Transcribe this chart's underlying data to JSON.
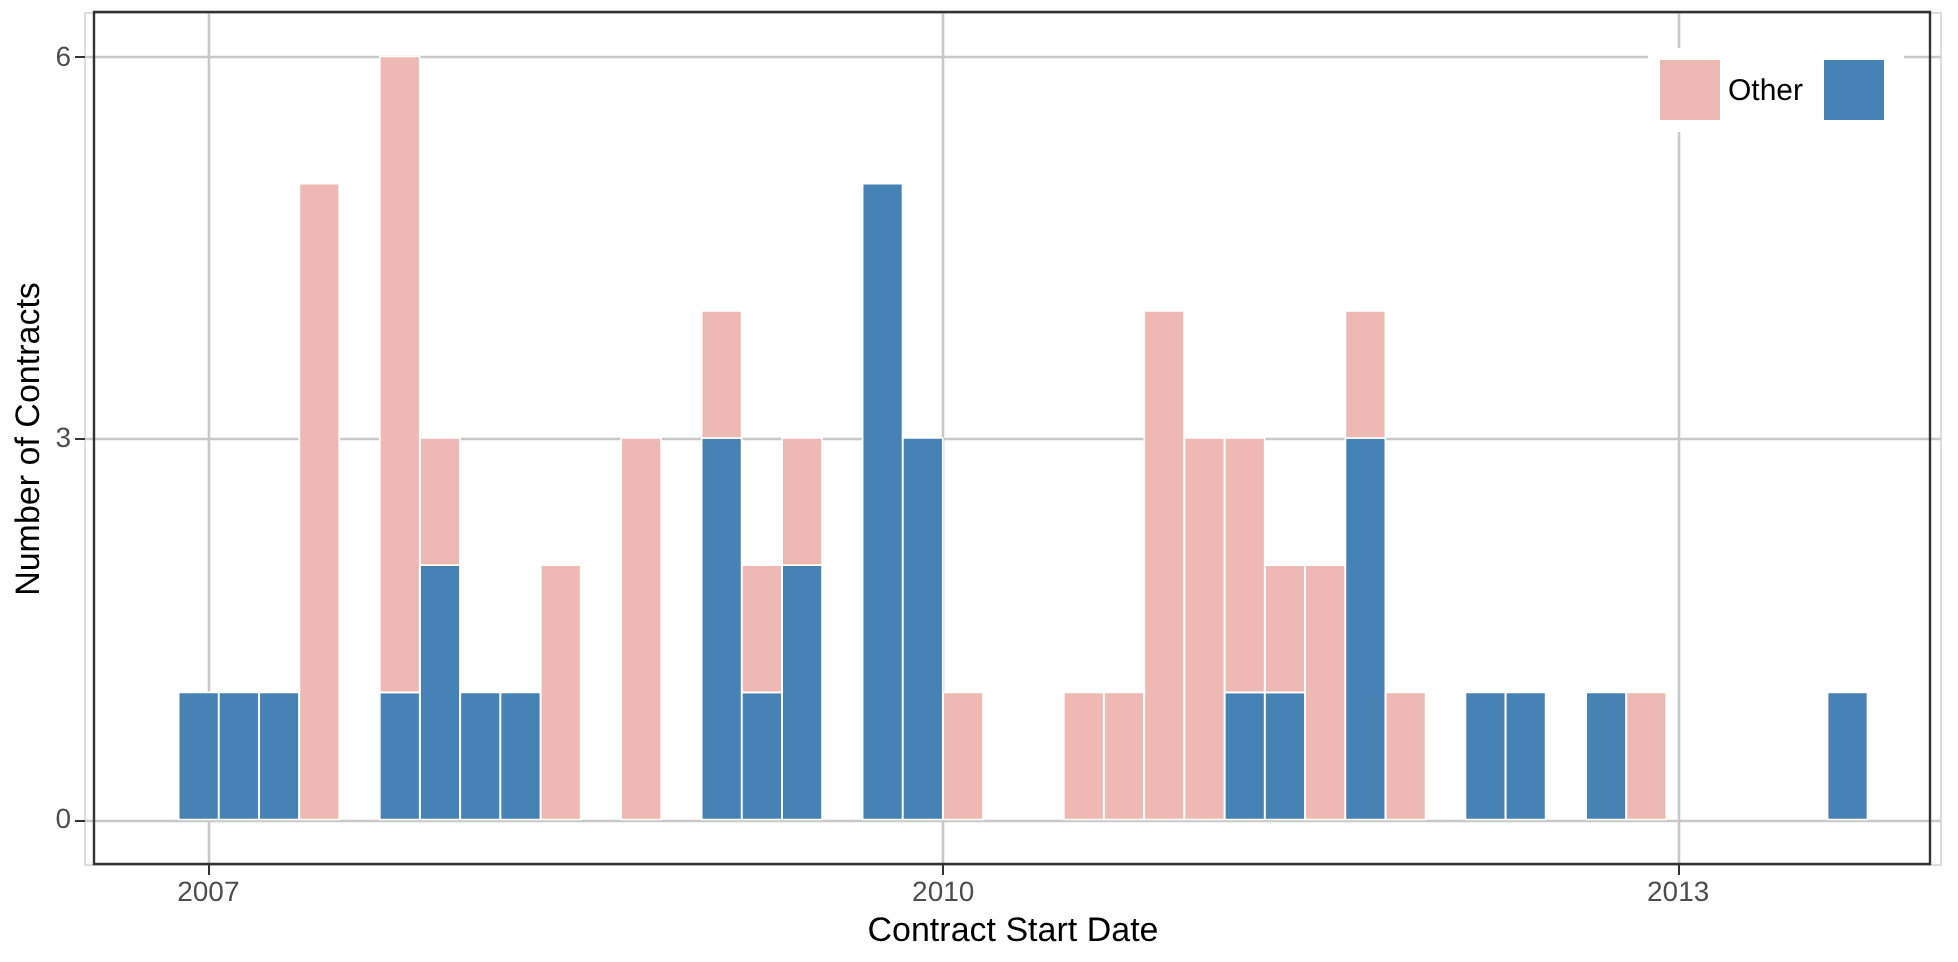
{
  "chart_data": {
    "type": "bar",
    "stacked": true,
    "xlabel": "Contract Start Date",
    "ylabel": "Number of Contracts",
    "x": [
      "2006-12-19",
      "2007-02-17",
      "2007-04-18",
      "2007-06-17",
      "2007-10-15",
      "2007-12-14",
      "2008-02-12",
      "2008-04-12",
      "2008-06-11",
      "2008-10-09",
      "2009-02-06",
      "2009-04-07",
      "2009-06-06",
      "2009-10-04",
      "2009-12-03",
      "2010-02-01",
      "2010-07-31",
      "2010-09-29",
      "2010-11-28",
      "2011-01-27",
      "2011-03-28",
      "2011-05-27",
      "2011-07-26",
      "2011-09-24",
      "2011-11-23",
      "2012-03-21",
      "2012-05-20",
      "2012-09-17",
      "2012-11-16",
      "2013-09-12"
    ],
    "series": [
      {
        "color": "#4682b4",
        "values": [
          1,
          1,
          1,
          null,
          1,
          2,
          1,
          1,
          null,
          null,
          3,
          1,
          2,
          5,
          3,
          null,
          null,
          null,
          null,
          null,
          1,
          1,
          null,
          3,
          null,
          1,
          1,
          1,
          null,
          1
        ]
      },
      {
        "name": "Other",
        "color": "#eeb9b2",
        "values": [
          null,
          null,
          null,
          5,
          5,
          1,
          null,
          null,
          2,
          3,
          1,
          1,
          1,
          null,
          null,
          1,
          1,
          1,
          4,
          3,
          2,
          1,
          2,
          1,
          1,
          null,
          null,
          null,
          1,
          null
        ]
      }
    ],
    "xlim": [
      "2006-07-16",
      "2014-01-13"
    ],
    "xticks": [
      {
        "value": "2007-01-01",
        "label": "2007"
      },
      {
        "value": "2010-01-01",
        "label": "2010"
      },
      {
        "value": "2013-01-01",
        "label": "2013"
      }
    ],
    "ylim": [
      -0.35,
      6.35
    ],
    "yticks": [
      0,
      3,
      6
    ],
    "grid": true,
    "legend": "top right"
  }
}
